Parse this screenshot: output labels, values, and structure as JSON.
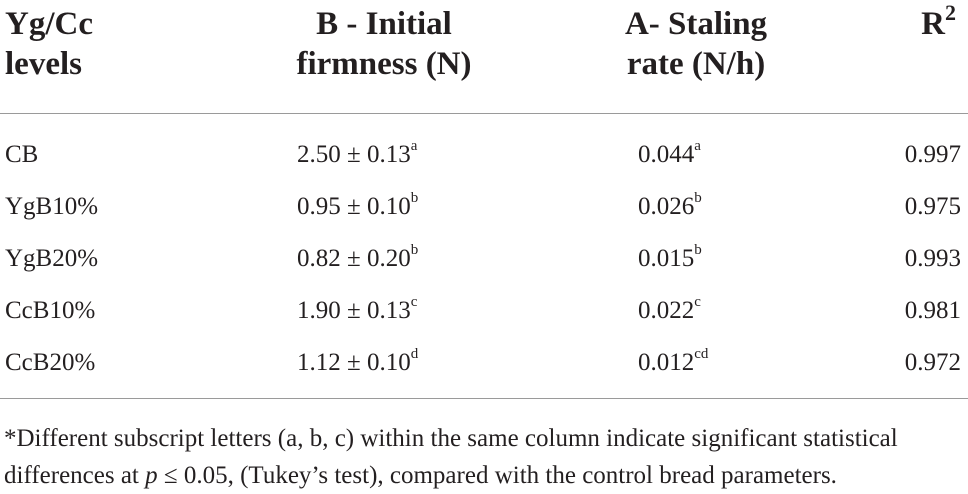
{
  "table": {
    "headers": [
      {
        "line1": "Yg/Cc",
        "line2": "levels"
      },
      {
        "line1": "B - Initial",
        "line2": "firmness (N)"
      },
      {
        "line1": "A- Staling",
        "line2": "rate (N/h)"
      },
      {
        "line1": "R",
        "sup": "2"
      }
    ],
    "rows": [
      {
        "level": "CB",
        "firmness": "2.50 ± 0.13",
        "firmness_sup": "a",
        "staling": "0.044",
        "staling_sup": "a",
        "r2": "0.997"
      },
      {
        "level": "YgB10%",
        "firmness": "0.95 ± 0.10",
        "firmness_sup": "b",
        "staling": "0.026",
        "staling_sup": "b",
        "r2": "0.975"
      },
      {
        "level": "YgB20%",
        "firmness": "0.82 ± 0.20",
        "firmness_sup": "b",
        "staling": "0.015",
        "staling_sup": "b",
        "r2": "0.993"
      },
      {
        "level": "CcB10%",
        "firmness": "1.90 ± 0.13",
        "firmness_sup": "c",
        "staling": "0.022",
        "staling_sup": "c",
        "r2": "0.981"
      },
      {
        "level": "CcB20%",
        "firmness": "1.12 ± 0.10",
        "firmness_sup": "d",
        "staling": "0.012",
        "staling_sup": "cd",
        "r2": "0.972"
      }
    ]
  },
  "footnote": {
    "line1": "*Different subscript letters (a, b, c) within the same column indicate significant statistical",
    "line2_pre": "differences at ",
    "line2_p": "p",
    "line2_post": " ≤ 0.05, (Tukey’s test), compared with the control bread parameters."
  }
}
